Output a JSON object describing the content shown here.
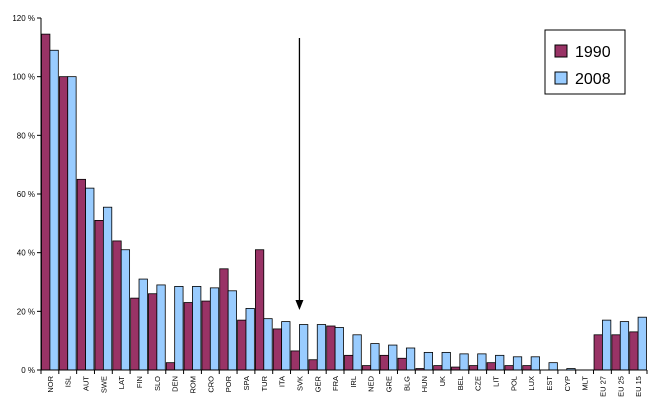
{
  "chart_data": {
    "type": "bar",
    "categories": [
      "NOR",
      "ISL",
      "AUT",
      "SWE",
      "LAT",
      "FIN",
      "SLO",
      "DEN",
      "ROM",
      "CRO",
      "POR",
      "SPA",
      "TUR",
      "ITA",
      "SVK",
      "GER",
      "FRA",
      "IRL",
      "NED",
      "GRE",
      "BLG",
      "HUN",
      "UK",
      "BEL",
      "CZE",
      "LIT",
      "POL",
      "LUX",
      "EST",
      "CYP",
      "MLT",
      "EU 27",
      "EU 25",
      "EU 15"
    ],
    "series": [
      {
        "name": "1990",
        "color": "#993366",
        "values": [
          114.5,
          100,
          65,
          51,
          44,
          24.5,
          26,
          2.5,
          23,
          23.5,
          34.5,
          17,
          41,
          14,
          6.5,
          3.5,
          15,
          5,
          1.5,
          5,
          4,
          0.5,
          1.5,
          1,
          1.5,
          2.5,
          1.5,
          1.5,
          0,
          0,
          0,
          12,
          12,
          13
        ]
      },
      {
        "name": "2008",
        "color": "#99CCFF",
        "values": [
          109,
          100,
          62,
          55.5,
          41,
          31,
          29,
          28.5,
          28.5,
          28,
          27,
          21,
          17.5,
          16.5,
          15.5,
          15.5,
          14.5,
          12,
          9,
          8.5,
          7.5,
          6,
          6,
          5.5,
          5.5,
          5,
          4.5,
          4.5,
          2.5,
          0.5,
          0,
          17,
          16.5,
          18
        ]
      }
    ],
    "ylim": [
      0,
      120
    ],
    "yticks": [
      "0 %",
      "20 %",
      "40 %",
      "60 %",
      "80 %",
      "100 %",
      "120 %"
    ],
    "grid": false,
    "legend_position": "top-right",
    "annotation": "arrow pointing down at SVK"
  }
}
